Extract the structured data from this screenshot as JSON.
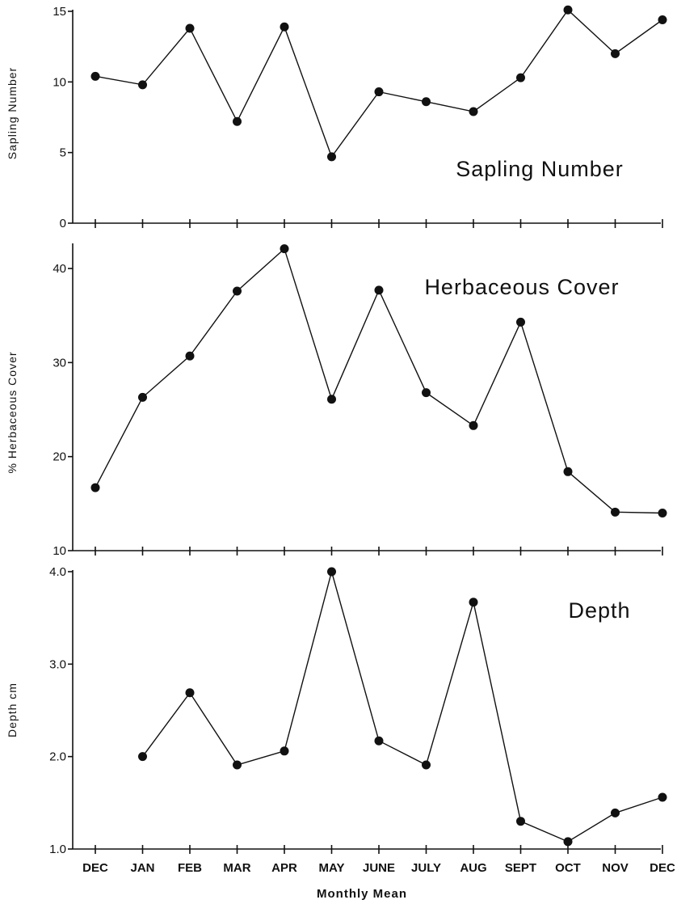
{
  "chart_data": {
    "type": "line",
    "categories": [
      "DEC",
      "JAN",
      "FEB",
      "MAR",
      "APR",
      "MAY",
      "JUNE",
      "JULY",
      "AUG",
      "SEPT",
      "OCT",
      "NOV",
      "DEC"
    ],
    "xlabel": "Monthly Mean",
    "panels": [
      {
        "title": "Sapling Number",
        "ylabel": "Sapling Number",
        "ylim": [
          0,
          15
        ],
        "yticks": [
          "0",
          "5",
          "10",
          "15"
        ],
        "values": [
          10.4,
          9.8,
          13.8,
          7.2,
          13.9,
          4.7,
          9.3,
          8.6,
          7.9,
          10.3,
          15.1,
          12.0,
          14.4
        ]
      },
      {
        "title": "Herbaceous Cover",
        "ylabel": "% Herbaceous Cover",
        "ylim": [
          10,
          42.5
        ],
        "yticks": [
          "10",
          "20",
          "30",
          "40"
        ],
        "values": [
          16.7,
          26.3,
          30.7,
          37.6,
          42.1,
          26.1,
          37.7,
          26.8,
          23.3,
          34.3,
          18.4,
          14.1,
          14.0
        ]
      },
      {
        "title": "Depth",
        "ylabel": "Depth cm",
        "ylim": [
          1.0,
          4.0
        ],
        "yticks": [
          "1.0",
          "2.0",
          "3.0",
          "4.0"
        ],
        "values": [
          null,
          2.0,
          2.69,
          1.91,
          2.06,
          4.0,
          2.17,
          1.91,
          3.67,
          1.3,
          1.08,
          1.39,
          1.56
        ]
      }
    ],
    "grid": false,
    "legend": "none"
  }
}
